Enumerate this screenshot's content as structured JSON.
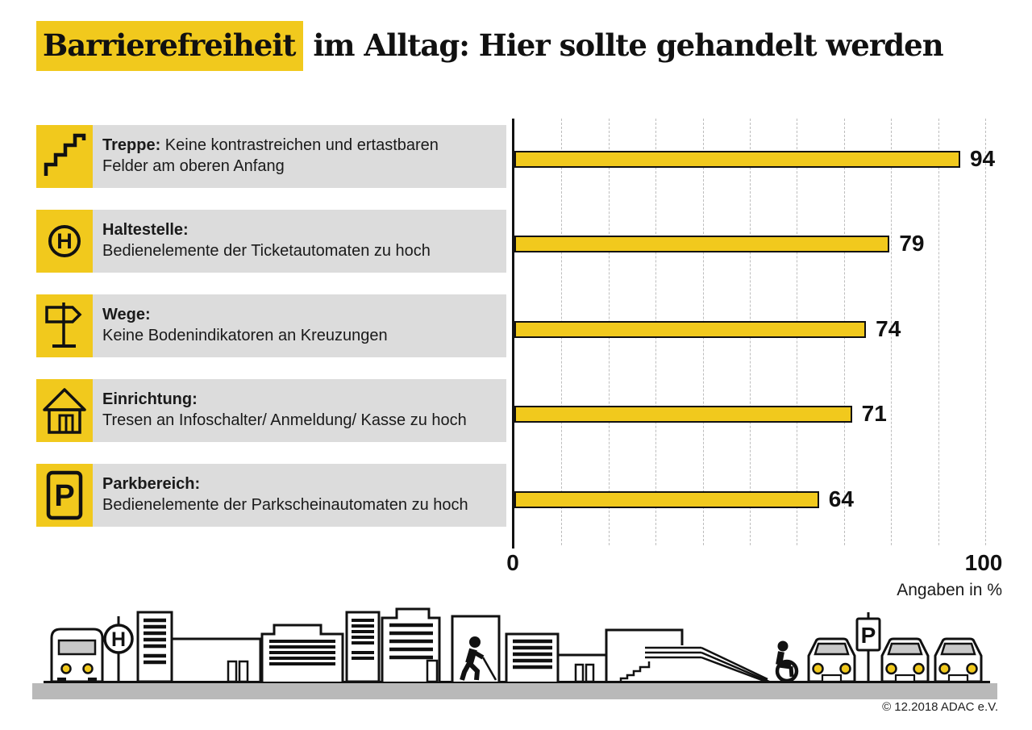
{
  "title": {
    "highlight": "Barrierefreiheit",
    "rest": " im Alltag: Hier sollte gehandelt werden"
  },
  "rows": [
    {
      "icon": "stairs-icon",
      "label": "Treppe:",
      "desc": " Keine kontrastreichen und ertastbaren Felder am oberen Anfang"
    },
    {
      "icon": "bus-stop-icon",
      "label": "Haltestelle:",
      "desc": "Bedienelemente der Ticketautomaten zu hoch"
    },
    {
      "icon": "signpost-icon",
      "label": "Wege:",
      "desc": "Keine Bodenindikatoren an Kreuzungen"
    },
    {
      "icon": "house-icon",
      "label": "Einrichtung:",
      "desc": "Tresen an Infoschalter/ Anmeldung/ Kasse zu hoch"
    },
    {
      "icon": "parking-icon",
      "label": "Parkbereich:",
      "desc": "Bedienelemente der Parkscheinautomaten zu hoch"
    }
  ],
  "chart_data": {
    "type": "bar",
    "orientation": "horizontal",
    "title": "Barrierefreiheit im Alltag: Hier sollte gehandelt werden",
    "categories": [
      "Treppe",
      "Haltestelle",
      "Wege",
      "Einrichtung",
      "Parkbereich"
    ],
    "values": [
      94,
      79,
      74,
      71,
      64
    ],
    "xlim": [
      0,
      100
    ],
    "x_ticks": [
      "0",
      "100"
    ],
    "gridlines_every": 10,
    "grid": true,
    "unit_label": "Angaben in %",
    "bar_color": "#F1C91D",
    "bar_border_color": "#111111"
  },
  "signs": {
    "haltestelle": "H",
    "parking": "P"
  },
  "colors": {
    "accent_yellow": "#F1C91D",
    "row_gray": "#DCDCDC",
    "ground_gray": "#B9B9B9",
    "windshield_gray": "#C8C8C8"
  },
  "footer": {
    "copyright": "© 12.2018 ADAC e.V."
  }
}
